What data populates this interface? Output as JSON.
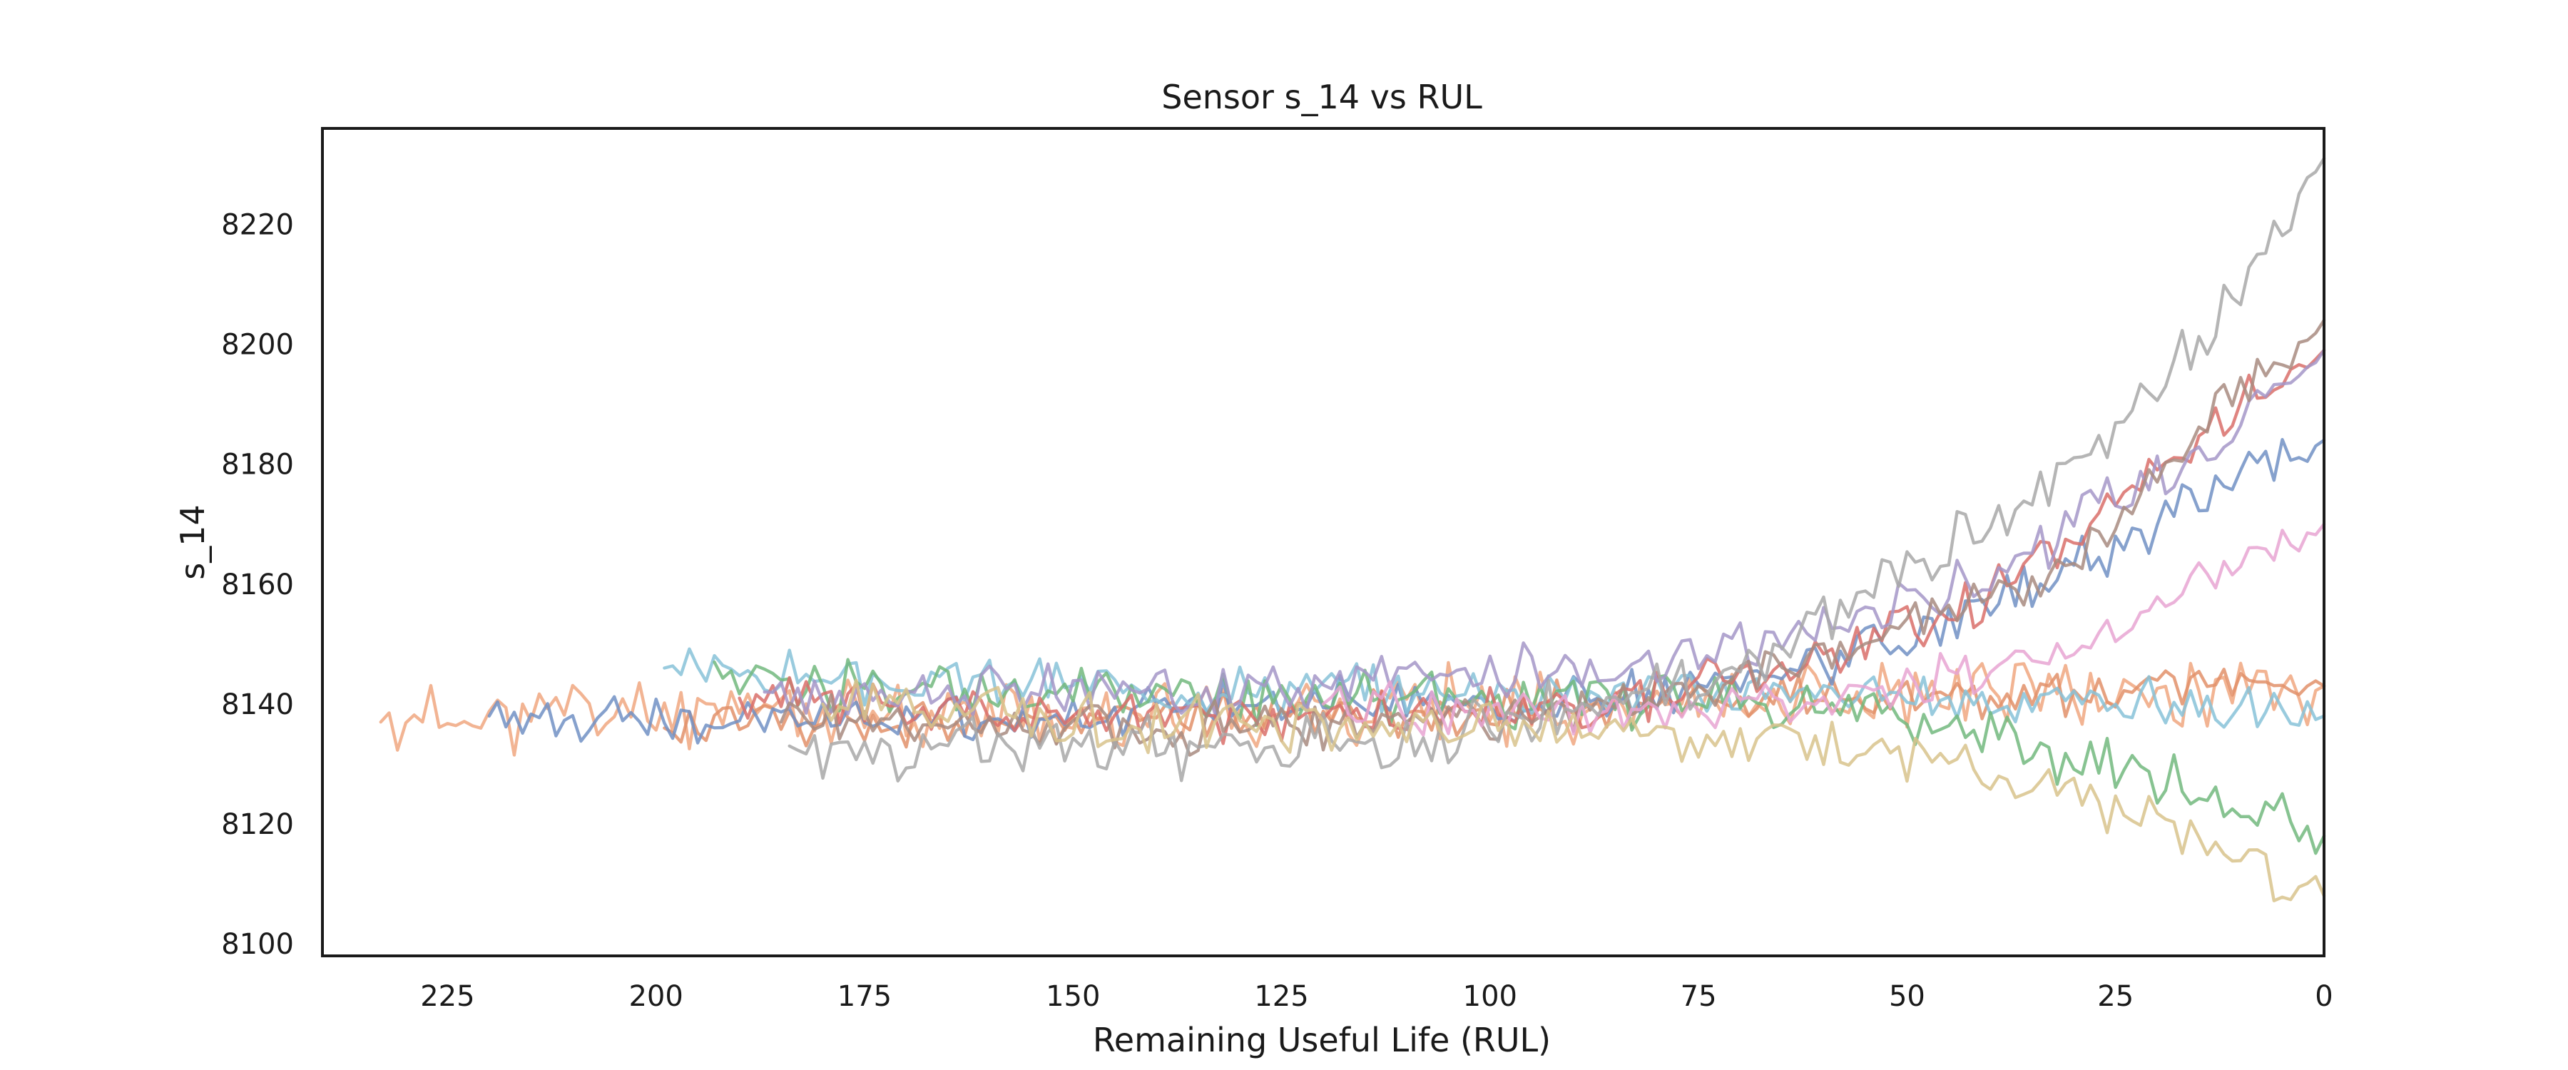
{
  "chart_data": {
    "type": "line",
    "title": "Sensor s_14 vs RUL",
    "xlabel": "Remaining Useful Life (RUL)",
    "ylabel": "s_14",
    "xlim": [
      240,
      0
    ],
    "ylim": [
      8098,
      8236
    ],
    "x_ticks": [
      225,
      200,
      175,
      150,
      125,
      100,
      75,
      50,
      25,
      0
    ],
    "y_ticks": [
      8100,
      8120,
      8140,
      8160,
      8180,
      8200,
      8220
    ],
    "grid": false,
    "legend": "none",
    "series": [
      {
        "color": "#f0a780",
        "start_rul": 233,
        "start": 8137,
        "end": 8143,
        "trend": [
          [
            233,
            8137
          ],
          [
            200,
            8139
          ],
          [
            150,
            8138
          ],
          [
            100,
            8140
          ],
          [
            60,
            8141
          ],
          [
            30,
            8141
          ],
          [
            15,
            8142
          ],
          [
            0,
            8143
          ]
        ],
        "noise": 4.5,
        "seed": 11
      },
      {
        "color": "#e2906a",
        "start_rul": 199,
        "start": 8136,
        "end": 8143,
        "trend": [
          [
            199,
            8136
          ],
          [
            150,
            8138
          ],
          [
            100,
            8139
          ],
          [
            60,
            8141
          ],
          [
            30,
            8142
          ],
          [
            0,
            8143
          ]
        ],
        "noise": 3.0,
        "seed": 12
      },
      {
        "color": "#7190c4",
        "start_rul": 220,
        "start": 8138,
        "end": 8184,
        "trend": [
          [
            220,
            8138
          ],
          [
            180,
            8137
          ],
          [
            130,
            8140
          ],
          [
            90,
            8140
          ],
          [
            60,
            8146
          ],
          [
            30,
            8163
          ],
          [
            15,
            8174
          ],
          [
            0,
            8184
          ]
        ],
        "noise": 3.2,
        "seed": 13
      },
      {
        "color": "#87c2d8",
        "start_rul": 199,
        "start": 8146,
        "end": 8138,
        "trend": [
          [
            199,
            8146
          ],
          [
            180,
            8144
          ],
          [
            150,
            8143
          ],
          [
            110,
            8142
          ],
          [
            70,
            8142
          ],
          [
            40,
            8141
          ],
          [
            20,
            8140
          ],
          [
            0,
            8138
          ]
        ],
        "noise": 3.0,
        "seed": 14
      },
      {
        "color": "#72b97e",
        "start_rul": 193,
        "start": 8147,
        "end": 8118,
        "trend": [
          [
            193,
            8146
          ],
          [
            170,
            8142
          ],
          [
            130,
            8141
          ],
          [
            90,
            8141
          ],
          [
            60,
            8141
          ],
          [
            45,
            8136
          ],
          [
            30,
            8131
          ],
          [
            15,
            8126
          ],
          [
            0,
            8118
          ]
        ],
        "noise": 3.5,
        "seed": 15
      },
      {
        "color": "#d96f6a",
        "start_rul": 190,
        "start": 8141,
        "end": 8199,
        "trend": [
          [
            190,
            8141
          ],
          [
            160,
            8139
          ],
          [
            120,
            8138
          ],
          [
            90,
            8139
          ],
          [
            65,
            8145
          ],
          [
            45,
            8155
          ],
          [
            25,
            8173
          ],
          [
            10,
            8190
          ],
          [
            0,
            8199
          ]
        ],
        "noise": 3.2,
        "seed": 16
      },
      {
        "color": "#a597c8",
        "start_rul": 187,
        "start": 8142,
        "end": 8199,
        "trend": [
          [
            187,
            8142
          ],
          [
            150,
            8142
          ],
          [
            110,
            8144
          ],
          [
            80,
            8147
          ],
          [
            60,
            8153
          ],
          [
            40,
            8162
          ],
          [
            20,
            8178
          ],
          [
            0,
            8199
          ]
        ],
        "noise": 3.4,
        "seed": 17
      },
      {
        "color": "#a88b80",
        "start_rul": 185,
        "start": 8137,
        "end": 8204,
        "trend": [
          [
            185,
            8137
          ],
          [
            150,
            8136
          ],
          [
            110,
            8137
          ],
          [
            80,
            8140
          ],
          [
            55,
            8150
          ],
          [
            30,
            8163
          ],
          [
            15,
            8185
          ],
          [
            0,
            8204
          ]
        ],
        "noise": 3.2,
        "seed": 18
      },
      {
        "color": "#e8a4d2",
        "start_rul": 120,
        "start": 8140,
        "end": 8170,
        "trend": [
          [
            120,
            8140
          ],
          [
            90,
            8138
          ],
          [
            60,
            8141
          ],
          [
            40,
            8146
          ],
          [
            25,
            8152
          ],
          [
            15,
            8160
          ],
          [
            0,
            8170
          ]
        ],
        "noise": 3.0,
        "seed": 19
      },
      {
        "color": "#a8a8a8",
        "start_rul": 184,
        "start": 8133,
        "end": 8231,
        "trend": [
          [
            184,
            8133
          ],
          [
            150,
            8133
          ],
          [
            125,
            8132
          ],
          [
            100,
            8137
          ],
          [
            70,
            8145
          ],
          [
            50,
            8162
          ],
          [
            30,
            8180
          ],
          [
            15,
            8200
          ],
          [
            5,
            8220
          ],
          [
            0,
            8231
          ]
        ],
        "noise": 3.8,
        "seed": 20
      },
      {
        "color": "#d8c38c",
        "start_rul": 180,
        "start": 8140,
        "end": 8108,
        "trend": [
          [
            180,
            8140
          ],
          [
            140,
            8137
          ],
          [
            100,
            8136
          ],
          [
            80,
            8135
          ],
          [
            60,
            8133
          ],
          [
            45,
            8130
          ],
          [
            30,
            8125
          ],
          [
            15,
            8117
          ],
          [
            0,
            8108
          ]
        ],
        "noise": 3.4,
        "seed": 21
      }
    ]
  }
}
